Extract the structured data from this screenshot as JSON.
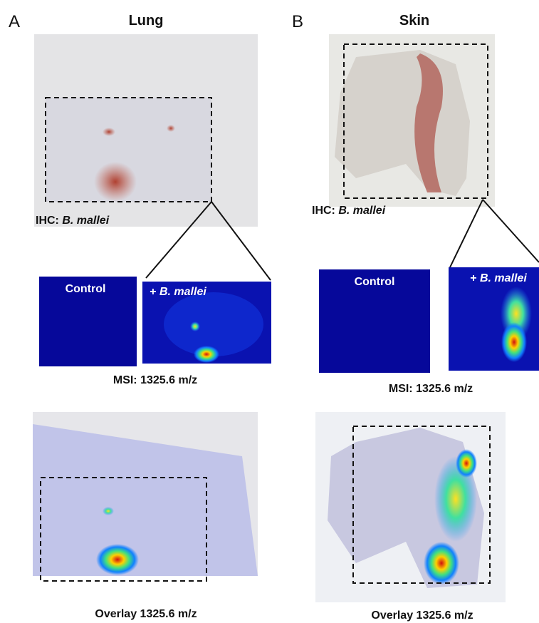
{
  "panels": [
    {
      "letter": "A",
      "title": "Lung",
      "ihc": {
        "prefix": "IHC:",
        "organism": "B. mallei"
      },
      "msi": {
        "control": "Control",
        "infected": {
          "prefix": "+",
          "organism": "B. mallei"
        },
        "label": "MSI: 1325.6 m/z"
      },
      "overlay": "Overlay 1325.6 m/z"
    },
    {
      "letter": "B",
      "title": "Skin",
      "ihc": {
        "prefix": "IHC:",
        "organism": "B. mallei"
      },
      "msi": {
        "control": "Control",
        "infected": {
          "prefix": "+",
          "organism": "B. mallei"
        },
        "label": "MSI: 1325.6 m/z"
      },
      "overlay": "Overlay 1325.6 m/z"
    }
  ]
}
